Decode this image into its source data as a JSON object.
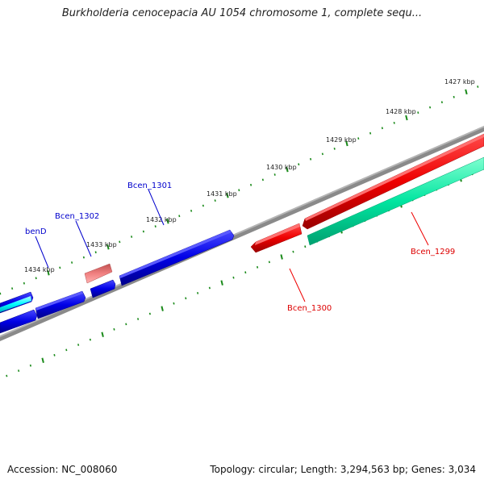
{
  "title": "Burkholderia cenocepacia AU 1054 chromosome 1, complete sequ...",
  "accession_text": "Accession: NC_008060",
  "summary_text": "Topology: circular; Length: 3,294,563 bp; Genes: 3,034",
  "scale": {
    "tick_labels": [
      "1427 kbp",
      "1428 kbp",
      "1429 kbp",
      "1430 kbp",
      "1431 kbp",
      "1432 kbp",
      "1433 kbp",
      "1434 kbp"
    ]
  },
  "genes": {
    "bcen_1299": {
      "label": "Bcen_1299",
      "strand": "reverse"
    },
    "bcen_1300": {
      "label": "Bcen_1300",
      "strand": "reverse"
    },
    "bcen_1301": {
      "label": "Bcen_1301",
      "strand": "forward"
    },
    "bcen_1302": {
      "label": "Bcen_1302",
      "strand": "forward"
    },
    "bend": {
      "label": "benD",
      "strand": "forward"
    }
  },
  "colors": {
    "forward_gene": "#0000e6",
    "reverse_gene": "#ee0000",
    "highlight_gene": "#f08080",
    "other_feature": "#00e5a0",
    "cyan_feature": "#00ffff",
    "backbone": "#808080",
    "ticks": "#1a8a1a"
  }
}
